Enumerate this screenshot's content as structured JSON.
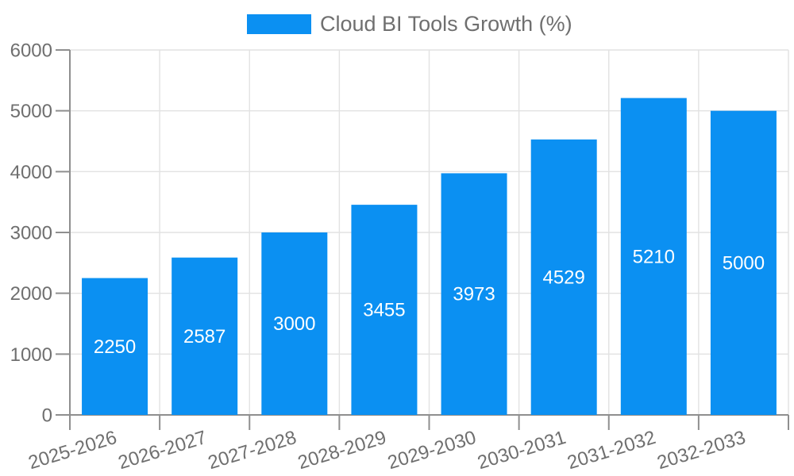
{
  "chart_data": {
    "type": "bar",
    "categories": [
      "2025-2026",
      "2026-2027",
      "2027-2028",
      "2028-2029",
      "2029-2030",
      "2030-2031",
      "2031-2032",
      "2032-2033"
    ],
    "series": [
      {
        "name": "Cloud BI Tools Growth (%)",
        "values": [
          2250,
          2587,
          3000,
          3455,
          3973,
          4529,
          5210,
          5000
        ]
      }
    ],
    "bar_value_labels": [
      "2250",
      "2587",
      "3000",
      "3455",
      "3973",
      "4529",
      "5210",
      "5000"
    ],
    "xlabel": "",
    "ylabel": "",
    "ylim": [
      0,
      6000
    ],
    "yticks": [
      0,
      1000,
      2000,
      3000,
      4000,
      5000,
      6000
    ],
    "ytick_labels": [
      "0",
      "1000",
      "2000",
      "3000",
      "4000",
      "5000",
      "6000"
    ],
    "grid": true,
    "legend_position": "top",
    "colors": {
      "bar": "#0b90f2",
      "axis": "#8f8f8f",
      "grid": "#e2e2e2",
      "text": "#6f6f6f",
      "bar_label": "#ffffff",
      "background": "#ffffff"
    }
  }
}
